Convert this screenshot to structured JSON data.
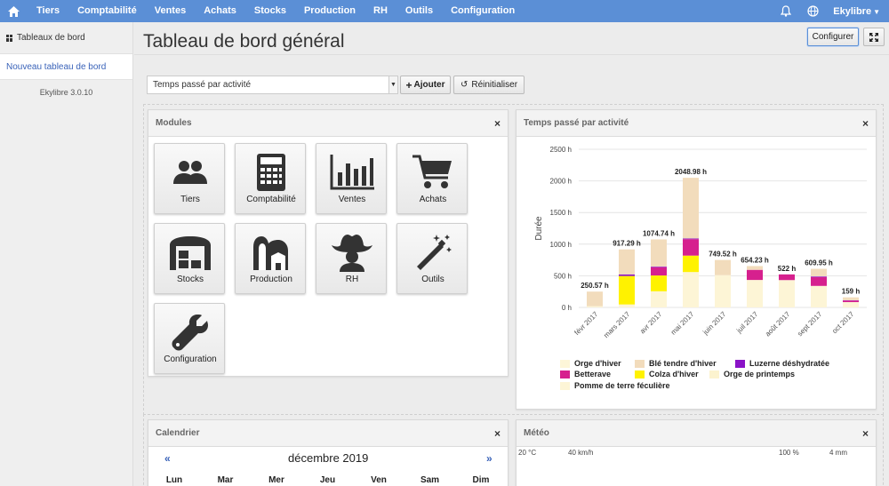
{
  "nav": {
    "items": [
      "Tiers",
      "Comptabilité",
      "Ventes",
      "Achats",
      "Stocks",
      "Production",
      "RH",
      "Outils",
      "Configuration"
    ],
    "user": "Ekylibre",
    "icons": [
      "home-icon",
      "bell-icon",
      "globe-icon",
      "caret-down-icon"
    ]
  },
  "sidebar": {
    "heading": "Tableaux de bord",
    "link": "Nouveau tableau de bord",
    "version": "Ekylibre 3.0.10"
  },
  "page": {
    "title": "Tableau de bord général",
    "configure_label": "Configurer"
  },
  "toolbar": {
    "select_value": "Temps passé par activité",
    "add_label": "Ajouter",
    "reset_label": "Réinitialiser"
  },
  "modules_panel": {
    "title": "Modules",
    "items": [
      "Tiers",
      "Comptabilité",
      "Ventes",
      "Achats",
      "Stocks",
      "Production",
      "RH",
      "Outils",
      "Configuration"
    ]
  },
  "chart_panel": {
    "title": "Temps passé par activité"
  },
  "chart_data": {
    "type": "bar",
    "stacked": true,
    "title": "",
    "xlabel": "",
    "ylabel": "Durée",
    "ylim": [
      0,
      2500
    ],
    "yticks": [
      "0 h",
      "500 h",
      "1000 h",
      "1500 h",
      "2000 h",
      "2500 h"
    ],
    "categories": [
      "févr 2017",
      "mars 2017",
      "avr 2017",
      "mai 2017",
      "juin 2017",
      "juil 2017",
      "août 2017",
      "sept 2017",
      "oct 2017"
    ],
    "totals": [
      "250.57 h",
      "917.29 h",
      "1074.74 h",
      "2048.98 h",
      "749.52 h",
      "654.23 h",
      "522 h",
      "609.95 h",
      "159 h"
    ],
    "series": [
      {
        "name": "Orge d'hiver",
        "color": "#fdf6d8",
        "values": [
          0,
          0,
          0,
          0,
          0,
          0,
          0,
          0,
          0
        ]
      },
      {
        "name": "Blé tendre d'hiver",
        "color": "#f2dcbc",
        "values": [
          230,
          395,
          430,
          960,
          240,
          60,
          0,
          120,
          45
        ]
      },
      {
        "name": "Luzerne déshydratée",
        "color": "#8a13c7",
        "values": [
          0,
          25,
          10,
          10,
          0,
          0,
          0,
          10,
          5
        ]
      },
      {
        "name": "Betterave",
        "color": "#d6208e",
        "values": [
          0,
          0,
          130,
          260,
          0,
          160,
          90,
          140,
          25
        ]
      },
      {
        "name": "Colza d'hiver",
        "color": "#fff200",
        "values": [
          0,
          450,
          250,
          260,
          0,
          0,
          0,
          0,
          0
        ]
      },
      {
        "name": "Orge de printemps",
        "color": "#fcf3cf",
        "values": [
          0,
          0,
          0,
          0,
          0,
          0,
          0,
          0,
          0
        ]
      },
      {
        "name": "Pomme de terre féculière",
        "color": "#fdf5d6",
        "values": [
          20,
          47,
          255,
          559,
          510,
          434,
          432,
          340,
          84
        ]
      }
    ],
    "grid": true,
    "legend": "bottom"
  },
  "calendar_panel": {
    "title": "Calendrier",
    "month": "décembre 2019",
    "prev": "«",
    "next": "»",
    "days": [
      "Lun",
      "Mar",
      "Mer",
      "Jeu",
      "Ven",
      "Sam",
      "Dim"
    ]
  },
  "meteo_panel": {
    "title": "Météo",
    "scales": [
      "20 °C",
      "40 km/h",
      "100 %",
      "4 mm"
    ]
  }
}
